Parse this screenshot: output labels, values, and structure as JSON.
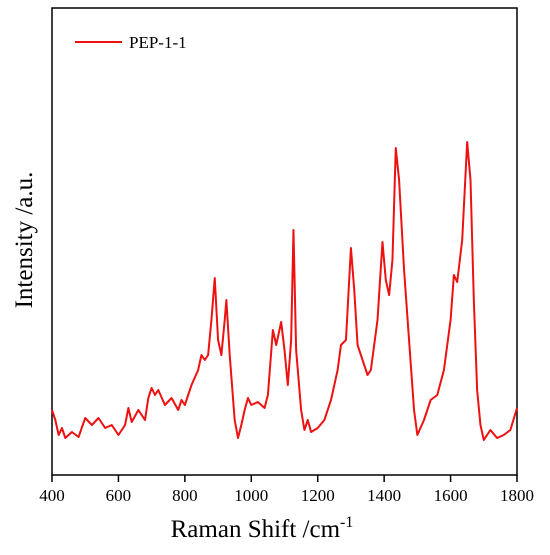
{
  "chart_data": {
    "type": "line",
    "xlabel": "Raman Shift /cm",
    "xlabel_superscript": "-1",
    "ylabel": "Intensity /a.u.",
    "xlim": [
      400,
      1800
    ],
    "xticks": [
      400,
      600,
      800,
      1000,
      1200,
      1400,
      1600,
      1800
    ],
    "ylim": [
      0,
      467
    ],
    "legend": "upper left",
    "x": [
      400,
      410,
      420,
      430,
      440,
      460,
      480,
      500,
      520,
      540,
      560,
      580,
      600,
      620,
      630,
      640,
      660,
      680,
      690,
      700,
      710,
      720,
      740,
      760,
      780,
      790,
      800,
      820,
      840,
      850,
      860,
      870,
      880,
      890,
      900,
      910,
      920,
      925,
      935,
      950,
      960,
      970,
      980,
      990,
      1000,
      1020,
      1040,
      1050,
      1065,
      1075,
      1090,
      1100,
      1110,
      1120,
      1127,
      1135,
      1150,
      1160,
      1170,
      1180,
      1200,
      1220,
      1240,
      1260,
      1270,
      1285,
      1300,
      1310,
      1320,
      1335,
      1350,
      1360,
      1380,
      1395,
      1405,
      1415,
      1425,
      1435,
      1445,
      1460,
      1475,
      1490,
      1500,
      1520,
      1540,
      1560,
      1580,
      1600,
      1610,
      1620,
      1635,
      1650,
      1660,
      1670,
      1680,
      1690,
      1700,
      1720,
      1740,
      1760,
      1780,
      1800
    ],
    "series": [
      {
        "name": "PEP-1-1",
        "color": "#ee1111",
        "values": [
          65,
          55,
          40,
          47,
          37,
          43,
          38,
          57,
          50,
          57,
          47,
          50,
          40,
          50,
          67,
          53,
          65,
          55,
          77,
          87,
          80,
          85,
          70,
          77,
          65,
          75,
          70,
          90,
          105,
          120,
          115,
          120,
          155,
          197,
          135,
          120,
          155,
          175,
          120,
          55,
          37,
          50,
          65,
          77,
          70,
          73,
          67,
          80,
          145,
          130,
          153,
          125,
          90,
          135,
          245,
          125,
          65,
          45,
          55,
          43,
          47,
          55,
          75,
          105,
          130,
          135,
          227,
          185,
          130,
          115,
          100,
          105,
          155,
          233,
          195,
          180,
          215,
          327,
          295,
          205,
          135,
          65,
          40,
          55,
          75,
          80,
          105,
          155,
          200,
          193,
          235,
          333,
          295,
          175,
          85,
          50,
          35,
          45,
          37,
          40,
          45,
          67
        ]
      }
    ]
  }
}
